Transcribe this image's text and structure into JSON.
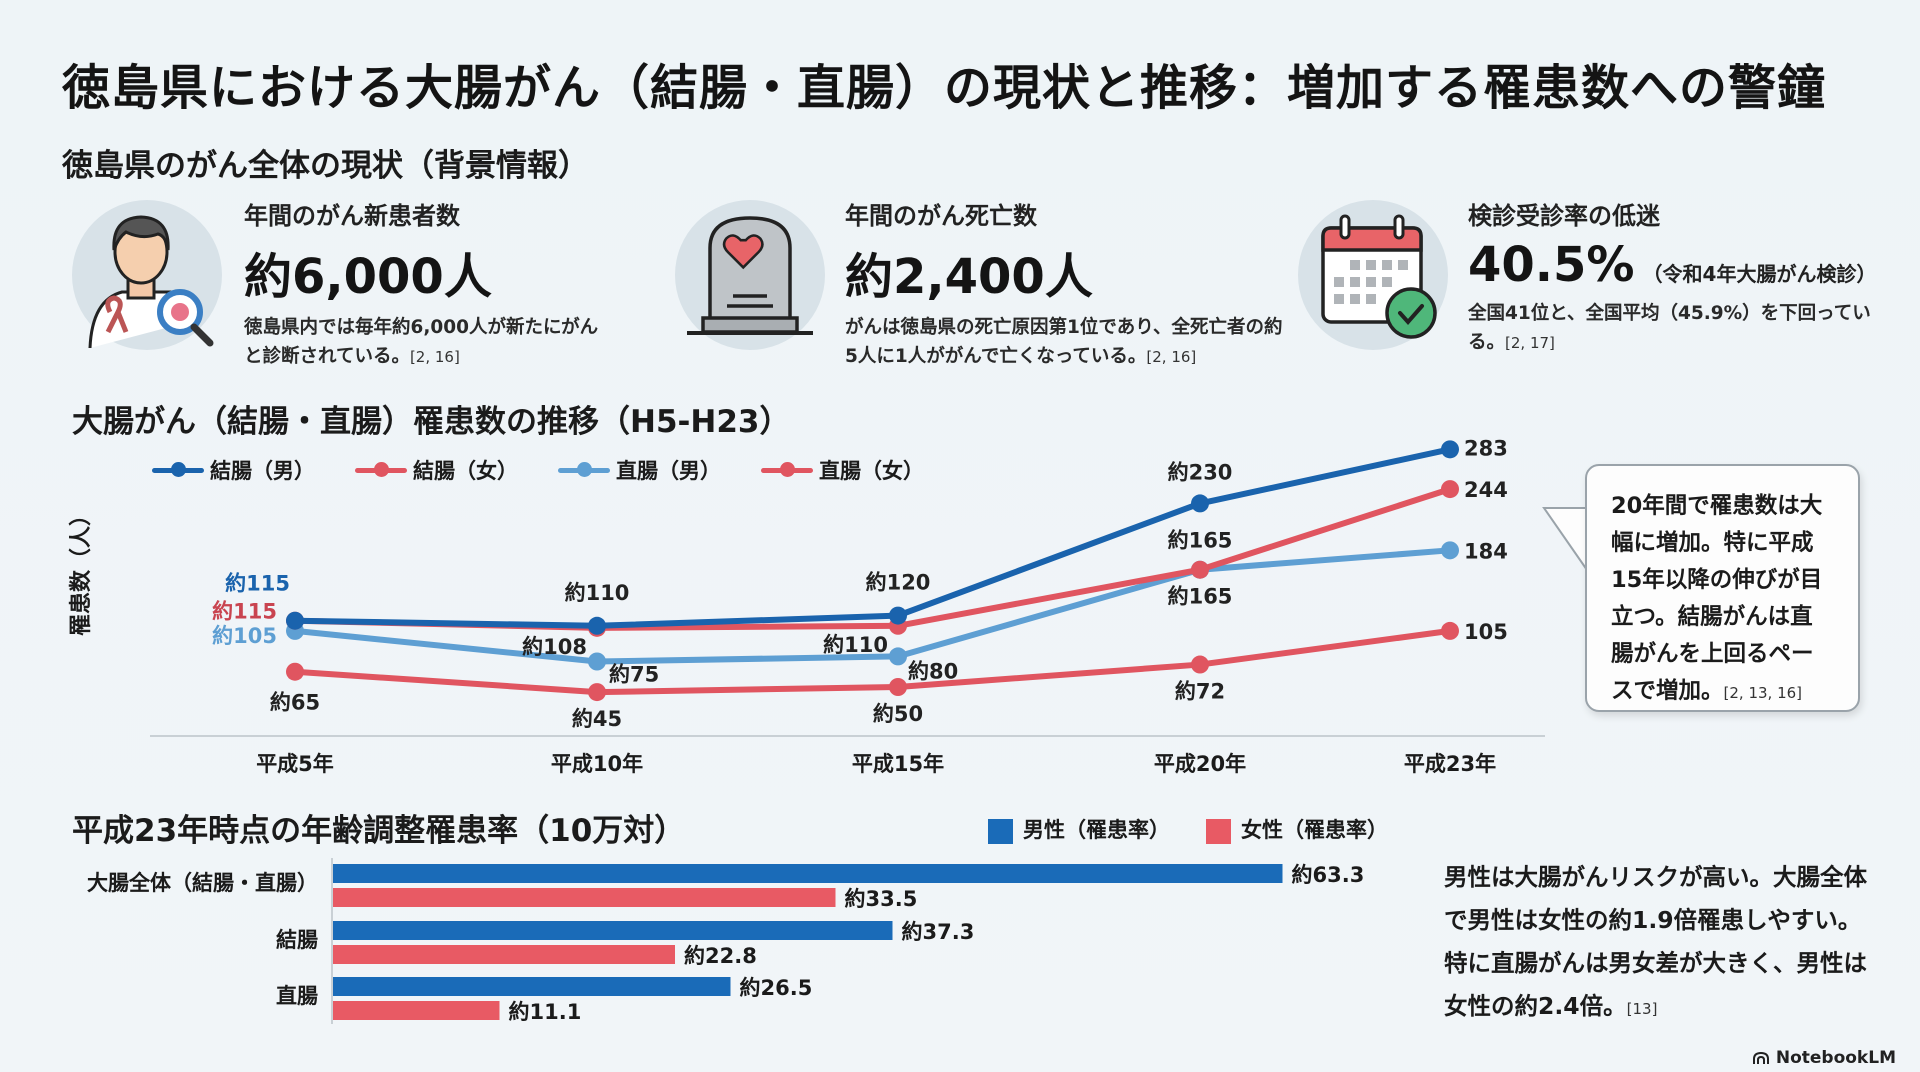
{
  "title": "徳島県における大腸がん（結腸・直腸）の現状と推移：増加する罹患数への警鐘",
  "background_section": {
    "heading": "徳島県のがん全体の現状（背景情報）",
    "stats": [
      {
        "icon": "patient-magnifier-icon",
        "label": "年間のがん新患者数",
        "value": "約6,000人",
        "sub": "",
        "desc": "徳島県内では毎年約6,000人が新たにがんと診断されている。",
        "cite": "[2, 16]"
      },
      {
        "icon": "tombstone-heart-icon",
        "label": "年間のがん死亡数",
        "value": "約2,400人",
        "sub": "",
        "desc": "がんは徳島県の死亡原因第1位であり、全死亡者の約5人に1人ががんで亡くなっている。",
        "cite": "[2, 16]"
      },
      {
        "icon": "calendar-check-icon",
        "label": "検診受診率の低迷",
        "value": "40.5%",
        "sub": "（令和4年大腸がん検診）",
        "desc": "全国41位と、全国平均（45.9%）を下回っている。",
        "cite": "[2, 17]"
      }
    ]
  },
  "line_section": {
    "heading": "大腸がん（結腸・直腸）罹患数の推移（H5-H23）",
    "callout": {
      "text": "20年間で罹患数は大幅に増加。特に平成15年以降の伸びが目立つ。結腸がんは直腸がんを上回るペースで増加。",
      "cite": "[2, 13, 16]"
    }
  },
  "bar_section": {
    "heading": "平成23年時点の年齢調整罹患率（10万対）",
    "note": {
      "text": "男性は大腸がんリスクが高い。大腸全体で男性は女性の約1.9倍罹患しやすい。特に直腸がんは男女差が大きく、男性は女性の約2.4倍。",
      "cite": "[13]"
    }
  },
  "colors": {
    "dark_blue": "#1a63ad",
    "red": "#e05560",
    "light_blue": "#5e9fd3",
    "bar_blue": "#1a6bb8",
    "bar_red": "#e85a64"
  },
  "brand": "NotebookLM",
  "chart_data": [
    {
      "type": "line",
      "title": "大腸がん（結腸・直腸）罹患数の推移（H5-H23）",
      "xlabel": "",
      "ylabel": "罹患数（人）",
      "categories": [
        "平成5年",
        "平成10年",
        "平成15年",
        "平成20年",
        "平成23年"
      ],
      "grid": false,
      "legend": "top-left",
      "series": [
        {
          "name": "結腸（男）",
          "color": "#1a63ad",
          "values": [
            115,
            110,
            120,
            230,
            283
          ],
          "labels": [
            "約115",
            "約110",
            "約120",
            "約230",
            "283"
          ]
        },
        {
          "name": "結腸（女）",
          "color": "#e05560",
          "values": [
            115,
            108,
            110,
            165,
            244
          ],
          "labels": [
            "約115",
            "約108",
            "約110",
            "約165",
            "244"
          ]
        },
        {
          "name": "直腸（男）",
          "color": "#5e9fd3",
          "values": [
            105,
            75,
            80,
            165,
            184
          ],
          "labels": [
            "約105",
            "約75",
            "約80",
            "約165",
            "184"
          ]
        },
        {
          "name": "直腸（女）",
          "color": "#e05560",
          "values": [
            65,
            45,
            50,
            72,
            105
          ],
          "labels": [
            "約65",
            "約45",
            "約50",
            "約72",
            "105"
          ]
        }
      ]
    },
    {
      "type": "bar",
      "orientation": "horizontal",
      "title": "平成23年時点の年齢調整罹患率（10万対）",
      "categories": [
        "大腸全体（結腸・直腸）",
        "結腸",
        "直腸"
      ],
      "legend": "top-right",
      "series": [
        {
          "name": "男性（罹患率）",
          "color": "#1a6bb8",
          "values": [
            63.3,
            37.3,
            26.5
          ],
          "labels": [
            "約63.3",
            "約37.3",
            "約26.5"
          ]
        },
        {
          "name": "女性（罹患率）",
          "color": "#e85a64",
          "values": [
            33.5,
            22.8,
            11.1
          ],
          "labels": [
            "約33.5",
            "約22.8",
            "約11.1"
          ]
        }
      ]
    }
  ]
}
